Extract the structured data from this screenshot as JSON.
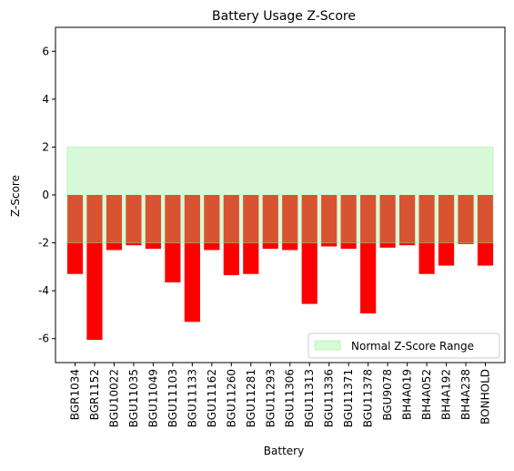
{
  "chart_data": {
    "type": "bar",
    "title": "Battery Usage Z-Score",
    "xlabel": "Battery",
    "ylabel": "Z-Score",
    "ylim": [
      -7,
      7
    ],
    "yticks": [
      -6,
      -4,
      -2,
      0,
      2,
      4,
      6
    ],
    "grid": false,
    "categories": [
      "BGR1034",
      "BGR1152",
      "BGU10022",
      "BGU11035",
      "BGU11049",
      "BGU11103",
      "BGU11133",
      "BGU11162",
      "BGU11260",
      "BGU11281",
      "BGU11293",
      "BGU11306",
      "BGU11313",
      "BGU11336",
      "BGU11371",
      "BGU11378",
      "BGU9078",
      "BH4A019",
      "BH4A052",
      "BH4A192",
      "BH4A238",
      "BONHOLD"
    ],
    "values": [
      -3.3,
      -6.05,
      -2.3,
      -2.1,
      -2.25,
      -3.65,
      -5.3,
      -2.3,
      -3.35,
      -3.3,
      -2.25,
      -2.3,
      -4.55,
      -2.15,
      -2.25,
      -4.95,
      -2.2,
      -2.1,
      -3.3,
      -2.95,
      -2.05,
      -2.95
    ],
    "bar_color": "#ff0000",
    "normal_range": {
      "lower": -2,
      "upper": 2,
      "color": "#90ee90",
      "label": "Normal Z-Score Range"
    },
    "legend": {
      "position": "bottom-right",
      "entries": [
        "Normal Z-Score Range"
      ]
    }
  }
}
